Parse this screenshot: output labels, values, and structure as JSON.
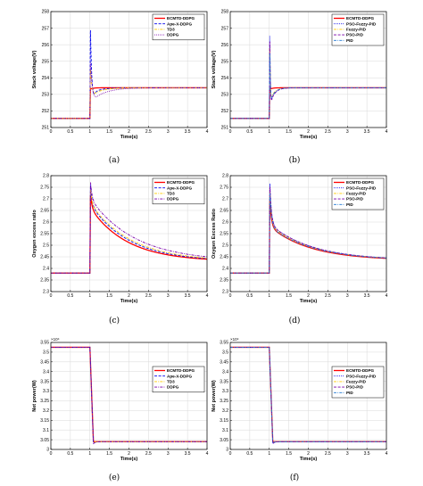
{
  "chart_data": [
    {
      "id": "a",
      "type": "line",
      "caption": "(a)",
      "xlabel": "Time(s)",
      "ylabel": "Stack voltage(V)",
      "xlim": [
        0,
        4
      ],
      "ylim": [
        251,
        258
      ],
      "grid": true,
      "xticks": [
        "0",
        "0.5",
        "1",
        "1.5",
        "2",
        "2.5",
        "3",
        "3.5",
        "4"
      ],
      "yticks": [
        "251",
        "252",
        "253",
        "254",
        "255",
        "256",
        "257",
        "258"
      ],
      "exponent": "",
      "legend_position": "top-right",
      "model": {
        "kind": "voltage",
        "before": 251.55,
        "after": 253.4
      },
      "series": [
        {
          "name": "ECMTD-DDPG",
          "color": "#ff0000",
          "dash": "solid",
          "peak": 253.4,
          "dip": 253.3,
          "tau": 0.03
        },
        {
          "name": "Ape-X-DDPG",
          "color": "#0000ee",
          "dash": "dash",
          "peak": 257.1,
          "dip": 253.0,
          "tau": 0.1
        },
        {
          "name": "TD3",
          "color": "#ffcc00",
          "dash": "dashdot",
          "peak": 254.6,
          "dip": 252.9,
          "tau": 0.12
        },
        {
          "name": "DDPG",
          "color": "#7a00aa",
          "dash": "dot",
          "peak": 255.0,
          "dip": 252.5,
          "tau": 0.15
        }
      ]
    },
    {
      "id": "b",
      "type": "line",
      "caption": "(b)",
      "xlabel": "Time(s)",
      "ylabel": "Stack voltage(V)",
      "xlim": [
        0,
        4
      ],
      "ylim": [
        251,
        258
      ],
      "grid": true,
      "xticks": [
        "0",
        "0.5",
        "1",
        "1.5",
        "2",
        "2.5",
        "3",
        "3.5",
        "4"
      ],
      "yticks": [
        "251",
        "252",
        "253",
        "254",
        "255",
        "256",
        "257",
        "258"
      ],
      "exponent": "",
      "legend_position": "top-right",
      "model": {
        "kind": "voltage",
        "before": 251.55,
        "after": 253.4
      },
      "series": [
        {
          "name": "ECMTD-DDPG",
          "color": "#ff0000",
          "dash": "solid",
          "peak": 253.4,
          "dip": 253.3,
          "tau": 0.03
        },
        {
          "name": "PSO-Fuzzy-PID",
          "color": "#0000ee",
          "dash": "dot",
          "peak": 257.0,
          "dip": 252.4,
          "tau": 0.05
        },
        {
          "name": "Fuzzy-PID",
          "color": "#ffcc00",
          "dash": "dashdot",
          "peak": 256.2,
          "dip": 252.6,
          "tau": 0.05
        },
        {
          "name": "PSO-PID",
          "color": "#7a00aa",
          "dash": "dash",
          "peak": 256.6,
          "dip": 252.3,
          "tau": 0.05
        },
        {
          "name": "PID",
          "color": "#1f77d4",
          "dash": "dashdot",
          "peak": 255.8,
          "dip": 252.5,
          "tau": 0.05
        }
      ]
    },
    {
      "id": "c",
      "type": "line",
      "caption": "(c)",
      "xlabel": "Time(s)",
      "ylabel": "Oxygen excess ratio",
      "xlim": [
        0,
        4
      ],
      "ylim": [
        2.3,
        2.8
      ],
      "grid": true,
      "xticks": [
        "0",
        "0.5",
        "1",
        "1.5",
        "2",
        "2.5",
        "3",
        "3.5",
        "4"
      ],
      "yticks": [
        "2.3",
        "2.35",
        "2.4",
        "2.45",
        "2.5",
        "2.55",
        "2.6",
        "2.65",
        "2.7",
        "2.75",
        "2.8"
      ],
      "exponent": "",
      "legend_position": "top-right",
      "model": {
        "kind": "oxygen",
        "before": 2.38,
        "final": 2.43
      },
      "series": [
        {
          "name": "ECMTD-DDPG",
          "color": "#ff0000",
          "dash": "solid",
          "peak": 2.72,
          "knee": 2.66,
          "tau": 0.95
        },
        {
          "name": "Ape-X-DDPG",
          "color": "#0000ee",
          "dash": "dash",
          "peak": 2.765,
          "knee": 2.675,
          "tau": 1.0
        },
        {
          "name": "TD3",
          "color": "#ffcc00",
          "dash": "dashdot",
          "peak": 2.745,
          "knee": 2.68,
          "tau": 1.05
        },
        {
          "name": "DDPG",
          "color": "#7a00aa",
          "dash": "dashdot",
          "peak": 2.775,
          "knee": 2.7,
          "tau": 1.15
        }
      ]
    },
    {
      "id": "d",
      "type": "line",
      "caption": "(d)",
      "xlabel": "Time(s)",
      "ylabel": "Oxygen Excess Ratio",
      "xlim": [
        0,
        4
      ],
      "ylim": [
        2.3,
        2.8
      ],
      "grid": true,
      "xticks": [
        "0",
        "0.5",
        "1",
        "1.5",
        "2",
        "2.5",
        "3",
        "3.5",
        "4"
      ],
      "yticks": [
        "2.3",
        "2.35",
        "2.4",
        "2.45",
        "2.5",
        "2.55",
        "2.6",
        "2.65",
        "2.7",
        "2.75",
        "2.8"
      ],
      "exponent": "",
      "legend_position": "top-right",
      "model": {
        "kind": "oxygen",
        "before": 2.38,
        "final": 2.435
      },
      "series": [
        {
          "name": "ECMTD-DDPG",
          "color": "#ff0000",
          "dash": "solid",
          "peak": 2.7,
          "knee": 2.58,
          "tau": 1.05
        },
        {
          "name": "PSO-Fuzzy-PID",
          "color": "#0000ee",
          "dash": "dot",
          "peak": 2.775,
          "knee": 2.59,
          "tau": 1.1
        },
        {
          "name": "Fuzzy-PID",
          "color": "#ffcc00",
          "dash": "dashdot",
          "peak": 2.74,
          "knee": 2.585,
          "tau": 1.1
        },
        {
          "name": "PSO-PID",
          "color": "#7a00aa",
          "dash": "dash",
          "peak": 2.76,
          "knee": 2.59,
          "tau": 1.1
        },
        {
          "name": "PID",
          "color": "#1f77d4",
          "dash": "dashdot",
          "peak": 2.73,
          "knee": 2.58,
          "tau": 1.1
        }
      ]
    },
    {
      "id": "e",
      "type": "line",
      "caption": "(e)",
      "xlabel": "Time(s)",
      "ylabel": "Net power(W)",
      "xlim": [
        0,
        4
      ],
      "ylim": [
        3,
        3.55
      ],
      "grid": true,
      "xticks": [
        "0",
        "0.5",
        "1",
        "1.5",
        "2",
        "2.5",
        "3",
        "3.5",
        "4"
      ],
      "yticks": [
        "3",
        "3.05",
        "3.1",
        "3.15",
        "3.2",
        "3.25",
        "3.3",
        "3.35",
        "3.4",
        "3.45",
        "3.5",
        "3.55"
      ],
      "exponent": "×10⁴",
      "legend_position": "right",
      "model": {
        "kind": "power",
        "before": 3.525,
        "after": 3.04
      },
      "series": [
        {
          "name": "ECMTD-DDPG",
          "color": "#ff0000",
          "dash": "solid",
          "dip": 3.04
        },
        {
          "name": "Ape-X-DDPG",
          "color": "#0000ee",
          "dash": "dash",
          "dip": 3.03
        },
        {
          "name": "TD3",
          "color": "#ffcc00",
          "dash": "dashdot",
          "dip": 3.035
        },
        {
          "name": "DDPG",
          "color": "#7a00aa",
          "dash": "dashdot",
          "dip": 3.03
        }
      ]
    },
    {
      "id": "f",
      "type": "line",
      "caption": "(f)",
      "xlabel": "Time(s)",
      "ylabel": "Net power(W)",
      "xlim": [
        0,
        4
      ],
      "ylim": [
        3,
        3.55
      ],
      "grid": true,
      "xticks": [
        "0",
        "0.5",
        "1",
        "1.5",
        "2",
        "2.5",
        "3",
        "3.5",
        "4"
      ],
      "yticks": [
        "3",
        "3.05",
        "3.1",
        "3.15",
        "3.2",
        "3.25",
        "3.3",
        "3.35",
        "3.4",
        "3.45",
        "3.5",
        "3.55"
      ],
      "exponent": "×10⁴",
      "legend_position": "right",
      "model": {
        "kind": "power",
        "before": 3.525,
        "after": 3.04
      },
      "series": [
        {
          "name": "ECMTD-DDPG",
          "color": "#ff0000",
          "dash": "solid",
          "dip": 3.04
        },
        {
          "name": "PSO-Fuzzy-PID",
          "color": "#0000ee",
          "dash": "dot",
          "dip": 3.03
        },
        {
          "name": "Fuzzy-PID",
          "color": "#ffcc00",
          "dash": "dashdot",
          "dip": 3.035
        },
        {
          "name": "PSO-PID",
          "color": "#7a00aa",
          "dash": "dash",
          "dip": 3.03
        },
        {
          "name": "PID",
          "color": "#1f77d4",
          "dash": "dashdot",
          "dip": 3.035
        }
      ]
    }
  ]
}
